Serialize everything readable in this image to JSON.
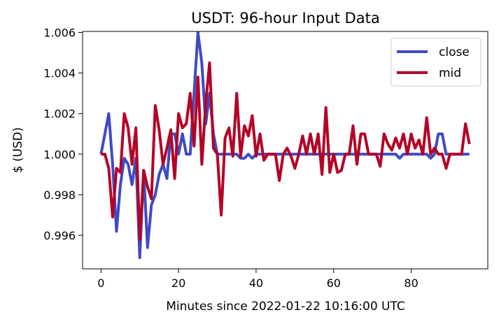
{
  "chart_data": {
    "type": "line",
    "title": "USDT: 96-hour Input Data",
    "xlabel": "Minutes since 2022-01-22 10:16:00 UTC",
    "ylabel": "$ (USD)",
    "xlim": [
      -4.75,
      99.75
    ],
    "ylim": [
      0.99435,
      1.00605
    ],
    "x_ticks": [
      0,
      20,
      40,
      60,
      80
    ],
    "x_tick_labels": [
      "0",
      "20",
      "40",
      "60",
      "80"
    ],
    "y_ticks": [
      0.996,
      0.998,
      1.0,
      1.002,
      1.004,
      1.006
    ],
    "y_tick_labels": [
      "0.996",
      "0.998",
      "1.000",
      "1.002",
      "1.004",
      "1.006"
    ],
    "grid": false,
    "legend_position": "top-right",
    "x": [
      0,
      1,
      2,
      3,
      4,
      5,
      6,
      7,
      8,
      9,
      10,
      11,
      12,
      13,
      14,
      15,
      16,
      17,
      18,
      19,
      20,
      21,
      22,
      23,
      24,
      25,
      26,
      27,
      28,
      29,
      30,
      31,
      32,
      33,
      34,
      35,
      36,
      37,
      38,
      39,
      40,
      41,
      42,
      43,
      44,
      45,
      46,
      47,
      48,
      49,
      50,
      51,
      52,
      53,
      54,
      55,
      56,
      57,
      58,
      59,
      60,
      61,
      62,
      63,
      64,
      65,
      66,
      67,
      68,
      69,
      70,
      71,
      72,
      73,
      74,
      75,
      76,
      77,
      78,
      79,
      80,
      81,
      82,
      83,
      84,
      85,
      86,
      87,
      88,
      89,
      90,
      91,
      92,
      93,
      94,
      95
    ],
    "series": [
      {
        "name": "close",
        "color": "#3f4bc3",
        "values": [
          1.0,
          1.001,
          1.002,
          0.9995,
          0.9962,
          0.9985,
          0.9998,
          0.9995,
          0.9985,
          0.9998,
          0.9949,
          0.9992,
          0.9954,
          0.9975,
          0.998,
          0.999,
          0.9995,
          0.9988,
          1.001,
          1.001,
          1.0,
          1.001,
          1.0,
          1.0,
          1.003,
          1.006,
          1.0045,
          1.0015,
          1.003,
          1.001,
          1.0,
          1.0,
          1.0,
          1.0,
          1.0,
          1.0,
          0.9998,
          0.9998,
          1.0,
          0.9998,
          1.0,
          1.0,
          1.0,
          1.0,
          1.0,
          1.0,
          1.0,
          1.0,
          1.0,
          1.0,
          1.0,
          1.0,
          1.0,
          1.0,
          1.0,
          1.0,
          1.0,
          1.0,
          1.0,
          1.0,
          1.0,
          1.0,
          1.0,
          1.0,
          1.0,
          1.0,
          1.0,
          1.0,
          1.0,
          1.0,
          1.0,
          1.0,
          1.0,
          1.0,
          1.0,
          1.0,
          1.0,
          0.9998,
          1.0,
          1.0,
          1.0,
          1.0,
          1.0,
          1.0,
          1.0,
          0.9998,
          1.0,
          1.001,
          1.001,
          1.0,
          1.0,
          1.0,
          1.0,
          1.0,
          1.0,
          1.0
        ]
      },
      {
        "name": "mid",
        "color": "#b40426",
        "values": [
          1.0,
          1.0,
          0.9993,
          0.9969,
          0.9993,
          0.9991,
          1.002,
          1.0013,
          0.9995,
          1.0013,
          0.9958,
          0.9992,
          0.9984,
          0.9978,
          1.0024,
          1.0012,
          0.9995,
          1.0003,
          1.0012,
          0.9988,
          1.002,
          1.0013,
          1.0015,
          1.003,
          1.0004,
          1.0038,
          0.9995,
          1.0025,
          1.0045,
          1.0003,
          1.0,
          0.997,
          1.0008,
          1.0013,
          0.9999,
          1.003,
          0.9999,
          1.0014,
          1.0009,
          1.0019,
          0.9999,
          1.001,
          0.9997,
          1.0,
          1.0,
          1.0,
          0.9987,
          1.0,
          1.0003,
          0.9999,
          0.9993,
          1.0,
          1.0009,
          1.0,
          1.001,
          1.0,
          1.001,
          0.999,
          1.0023,
          0.9991,
          1.0,
          0.9991,
          0.9992,
          1.0,
          1.0,
          1.0014,
          0.9995,
          1.001,
          1.001,
          1.0,
          1.0,
          1.0,
          0.9994,
          1.001,
          1.0005,
          1.0002,
          1.0008,
          1.0003,
          1.001,
          1.0,
          1.001,
          1.0003,
          1.0007,
          1.0,
          1.0018,
          1.0,
          1.0003,
          1.0,
          1.0,
          0.9993,
          1.0,
          1.0,
          1.0,
          1.0,
          1.0015,
          1.0005
        ]
      }
    ]
  }
}
